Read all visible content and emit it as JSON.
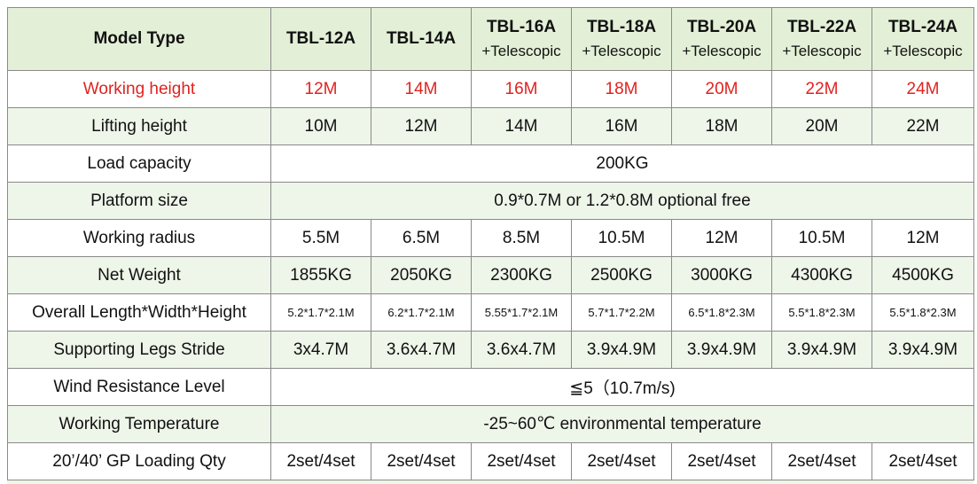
{
  "header": {
    "model_type": "Model Type",
    "models": [
      {
        "name": "TBL-12A",
        "sub": ""
      },
      {
        "name": "TBL-14A",
        "sub": ""
      },
      {
        "name": "TBL-16A",
        "sub": "+Telescopic"
      },
      {
        "name": "TBL-18A",
        "sub": "+Telescopic"
      },
      {
        "name": "TBL-20A",
        "sub": "+Telescopic"
      },
      {
        "name": "TBL-22A",
        "sub": "+Telescopic"
      },
      {
        "name": "TBL-24A",
        "sub": "+Telescopic"
      }
    ]
  },
  "rows": {
    "working_height": {
      "label": "Working height",
      "values": [
        "12M",
        "14M",
        "16M",
        "18M",
        "20M",
        "22M",
        "24M"
      ]
    },
    "lifting_height": {
      "label": "Lifting height",
      "values": [
        "10M",
        "12M",
        "14M",
        "16M",
        "18M",
        "20M",
        "22M"
      ]
    },
    "load_capacity": {
      "label": "Load capacity",
      "value": "200KG"
    },
    "platform_size": {
      "label": "Platform size",
      "value": "0.9*0.7M or 1.2*0.8M optional free"
    },
    "working_radius": {
      "label": "Working radius",
      "values": [
        "5.5M",
        "6.5M",
        "8.5M",
        "10.5M",
        "12M",
        "10.5M",
        "12M"
      ]
    },
    "net_weight": {
      "label": "Net Weight",
      "values": [
        "1855KG",
        "2050KG",
        "2300KG",
        "2500KG",
        "3000KG",
        "4300KG",
        "4500KG"
      ]
    },
    "overall_dims": {
      "label": "Overall Length*Width*Height",
      "values": [
        "5.2*1.7*2.1M",
        "6.2*1.7*2.1M",
        "5.55*1.7*2.1M",
        "5.7*1.7*2.2M",
        "6.5*1.8*2.3M",
        "5.5*1.8*2.3M",
        "5.5*1.8*2.3M"
      ]
    },
    "legs_stride": {
      "label": "Supporting Legs Stride",
      "values": [
        "3x4.7M",
        "3.6x4.7M",
        "3.6x4.7M",
        "3.9x4.9M",
        "3.9x4.9M",
        "3.9x4.9M",
        "3.9x4.9M"
      ]
    },
    "wind_resistance": {
      "label": "Wind Resistance Level",
      "value": "≦5（10.7m/s)"
    },
    "working_temperature": {
      "label": "Working Temperature",
      "value": "-25~60℃  environmental temperature"
    },
    "loading_qty": {
      "label": "20’/40’ GP Loading Qty",
      "values": [
        "2set/4set",
        "2set/4set",
        "2set/4set",
        "2set/4set",
        "2set/4set",
        "2set/4set",
        "2set/4set"
      ]
    }
  },
  "colors": {
    "header_bg": "#e3f0d7",
    "stripe_bg": "#eef5e9",
    "highlight": "#e0231f",
    "border": "#8a8a8a"
  }
}
